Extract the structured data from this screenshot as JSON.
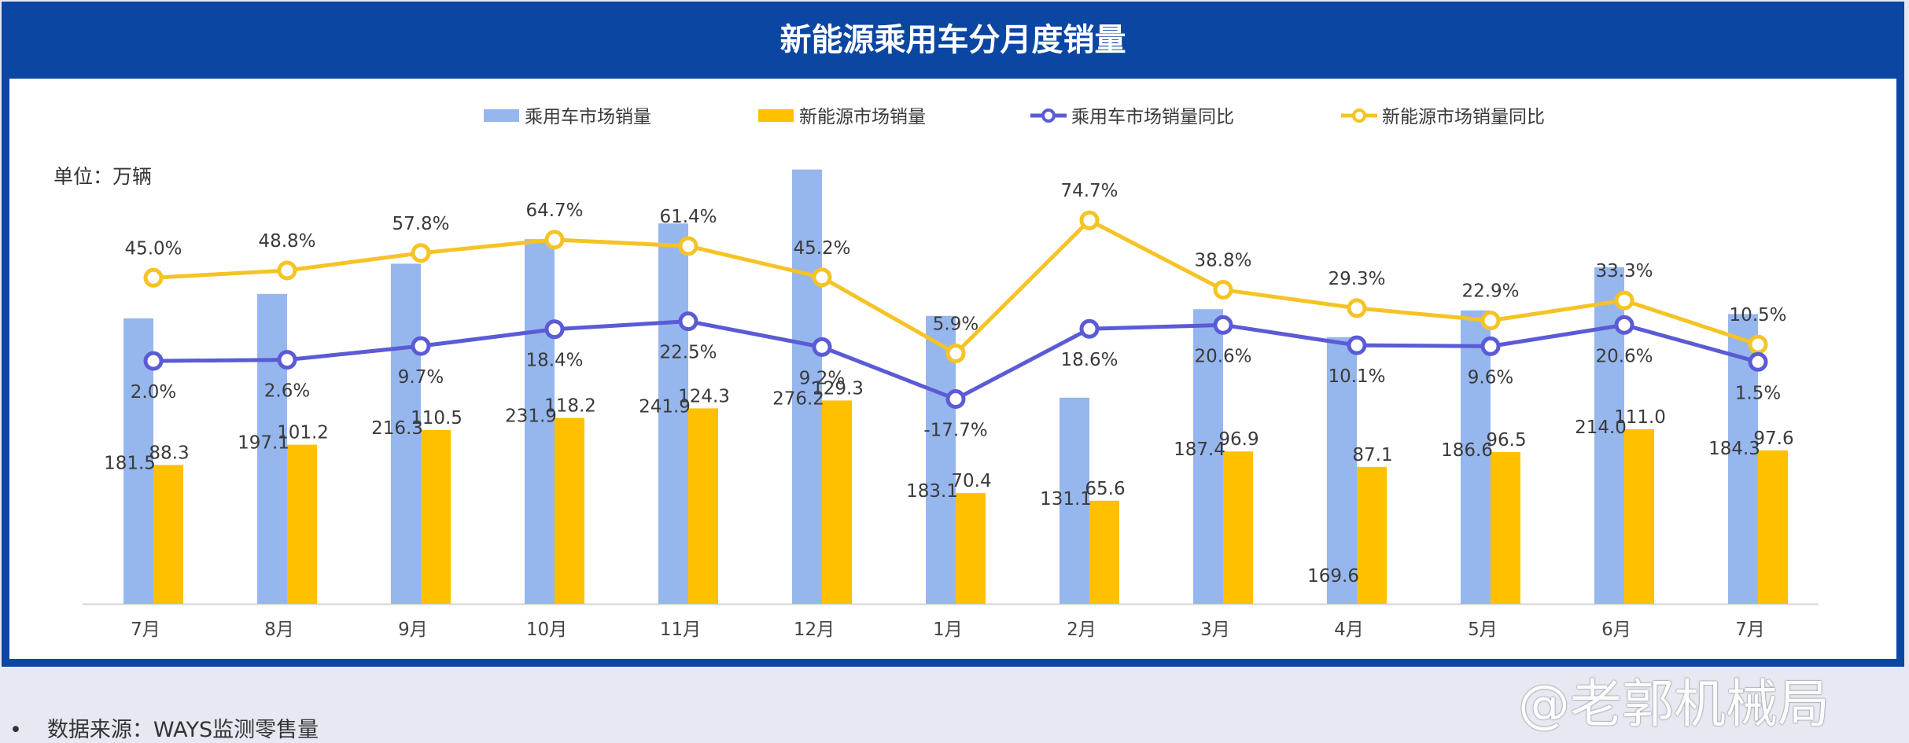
{
  "title": "新能源乘用车分月度销量",
  "unit_label": "单位：万辆",
  "source": "数据来源：WAYS监测零售量",
  "watermark": "@老郭机械局",
  "colors": {
    "header_bg": "#0b46a3",
    "bar_total": "#96b7ee",
    "bar_nev": "#ffc000",
    "line_total": "#5b5bd6",
    "line_nev": "#f5c325"
  },
  "chart_data": {
    "type": "bar",
    "categories": [
      "7月",
      "8月",
      "9月",
      "10月",
      "11月",
      "12月",
      "1月",
      "2月",
      "3月",
      "4月",
      "5月",
      "6月",
      "7月"
    ],
    "ylabel": "单位：万辆",
    "legend_position": "top",
    "grid": false,
    "series": [
      {
        "name": "乘用车市场销量",
        "type": "bar",
        "values": [
          181.5,
          197.1,
          216.3,
          231.9,
          241.9,
          276.2,
          183.1,
          131.1,
          187.4,
          169.6,
          186.6,
          214.0,
          184.3
        ],
        "labels": [
          "181.5",
          "197.1",
          "216.3",
          "231.9",
          "241.9",
          "276.2",
          "183.1",
          "131.1",
          "187.4",
          "169.6",
          "186.6",
          "214.0",
          "184.3"
        ]
      },
      {
        "name": "新能源市场销量",
        "type": "bar",
        "values": [
          88.3,
          101.2,
          110.5,
          118.2,
          124.3,
          129.3,
          70.4,
          65.6,
          96.9,
          87.1,
          96.5,
          111.0,
          97.6
        ],
        "labels": [
          "88.3",
          "101.2",
          "110.5",
          "118.2",
          "124.3",
          "129.3",
          "70.4",
          "65.6",
          "96.9",
          "87.1",
          "96.5",
          "111.0",
          "97.6"
        ]
      },
      {
        "name": "乘用车市场销量同比",
        "type": "line",
        "values": [
          2.0,
          2.6,
          9.7,
          18.4,
          22.5,
          9.2,
          -17.7,
          18.6,
          20.6,
          10.1,
          9.6,
          20.6,
          1.5
        ],
        "labels": [
          "2.0%",
          "2.6%",
          "9.7%",
          "18.4%",
          "22.5%",
          "9.2%",
          "-17.7%",
          "18.6%",
          "20.6%",
          "10.1%",
          "9.6%",
          "20.6%",
          "1.5%"
        ]
      },
      {
        "name": "新能源市场销量同比",
        "type": "line",
        "values": [
          45.0,
          48.8,
          57.8,
          64.7,
          61.4,
          45.2,
          5.9,
          74.7,
          38.8,
          29.3,
          22.9,
          33.3,
          10.5
        ],
        "labels": [
          "45.0%",
          "48.8%",
          "57.8%",
          "64.7%",
          "61.4%",
          "45.2%",
          "5.9%",
          "74.7%",
          "38.8%",
          "29.3%",
          "22.9%",
          "33.3%",
          "10.5%"
        ]
      }
    ]
  }
}
